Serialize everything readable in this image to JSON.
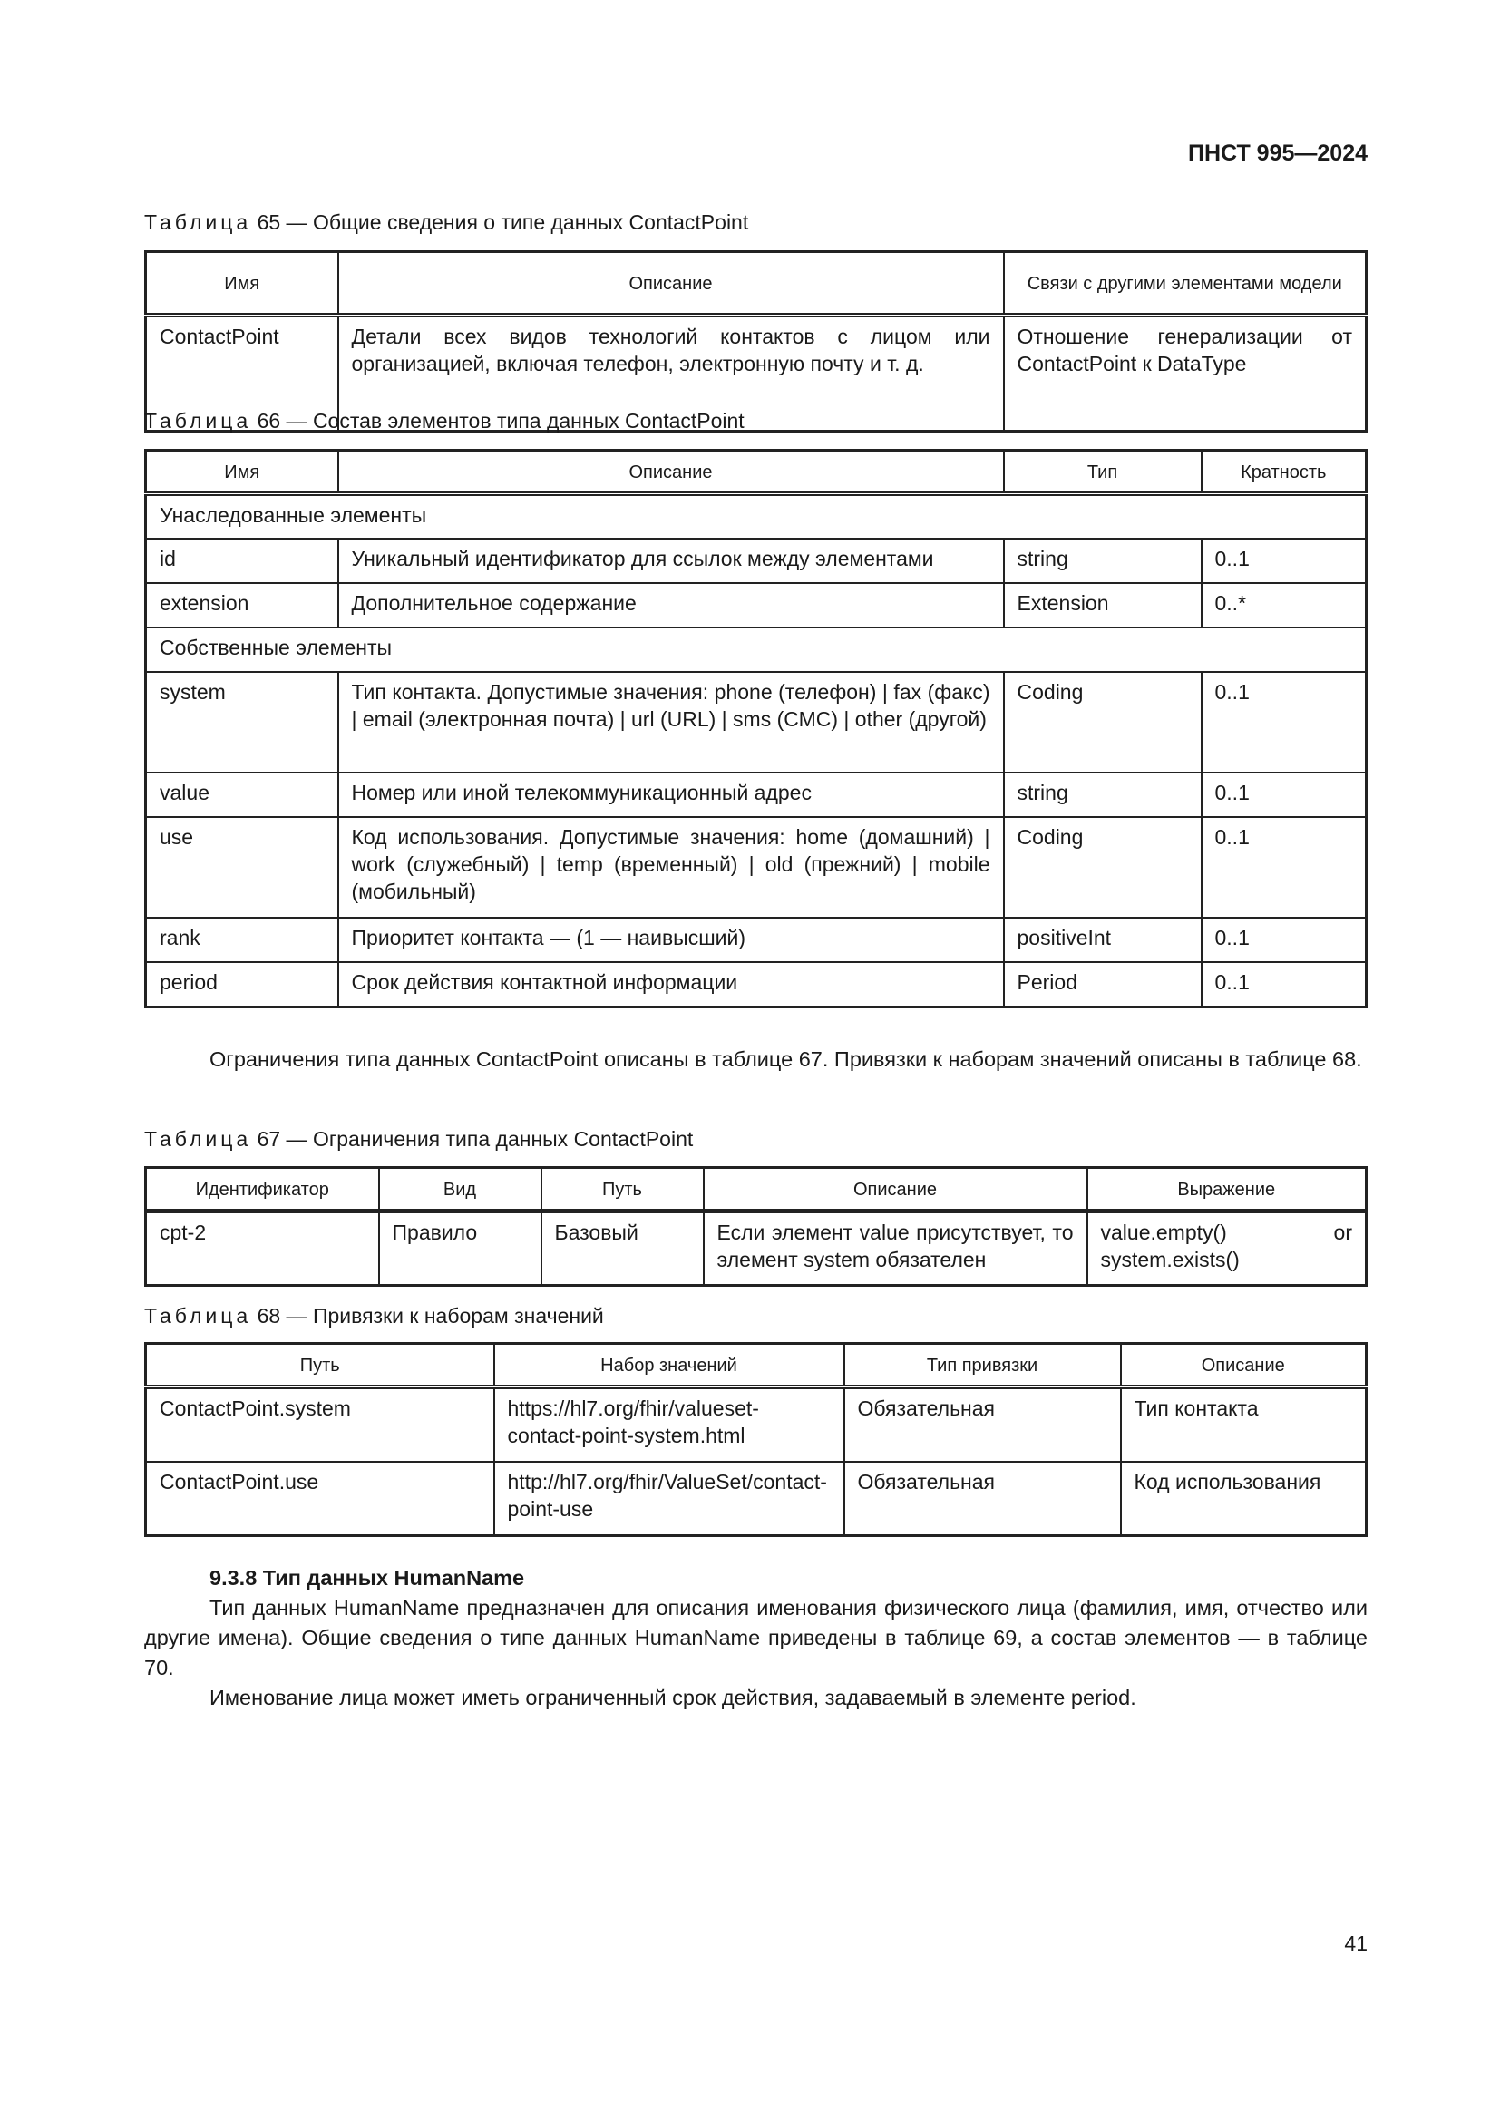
{
  "header": {
    "doc_number": "ПНСТ 995—2024"
  },
  "table65": {
    "caption_prefix": "Таблица",
    "caption_rest": " 65 — Общие сведения о типе данных ContactPoint",
    "headers": [
      "Имя",
      "Описание",
      "Связи с другими элементами модели"
    ],
    "rows": [
      [
        "ContactPoint",
        "Детали всех видов технологий контактов с лицом или организацией, включая телефон, электронную почту и т. д.",
        "Отношение генерализации от ContactPoint к DataType"
      ]
    ]
  },
  "table66": {
    "caption_prefix": "Таблица",
    "caption_rest": " 66 — Состав элементов типа данных ContactPoint",
    "headers": [
      "Имя",
      "Описание",
      "Тип",
      "Кратность"
    ],
    "rows": [
      [
        "Унаследованные элементы"
      ],
      [
        "id",
        "Уникальный идентификатор для ссылок между элементами",
        "string",
        "0..1"
      ],
      [
        "extension",
        "Дополнительное содержание",
        "Extension",
        "0..*"
      ],
      [
        "Собственные элементы"
      ],
      [
        "system",
        "Тип контакта. Допустимые значения: phone (телефон) | fax (факс) | email (электронная почта) | url (URL) | sms (СМС) | other (другой)",
        "Coding",
        "0..1"
      ],
      [
        "value",
        "Номер или иной телекоммуникационный адрес",
        "string",
        "0..1"
      ],
      [
        "use",
        "Код использования. Допустимые значения: home (домашний) | work (служебный) | temp (временный) | old (прежний) | mobile (мобильный)",
        "Coding",
        "0..1"
      ],
      [
        "rank",
        "Приоритет контакта — (1 — наивысший)",
        "positiveInt",
        "0..1"
      ],
      [
        "period",
        "Срок действия контактной информации",
        "Period",
        "0..1"
      ]
    ]
  },
  "paragraph1": "Ограничения типа данных ContactPoint описаны в таблице 67. Привязки к наборам значений описаны в таблице 68.",
  "table67": {
    "caption_prefix": "Таблица",
    "caption_rest": " 67 — Ограничения типа данных ContactPoint",
    "headers": [
      "Идентификатор",
      "Вид",
      "Путь",
      "Описание",
      "Выражение"
    ],
    "rows": [
      [
        "cpt-2",
        "Правило",
        "Базовый",
        "Если элемент value присутствует, то элемент system обязателен",
        "value.empty() or system.exists()"
      ]
    ]
  },
  "table68": {
    "caption_prefix": "Таблица",
    "caption_rest": " 68 — Привязки к наборам значений",
    "headers": [
      "Путь",
      "Набор значений",
      "Тип привязки",
      "Описание"
    ],
    "rows": [
      [
        "ContactPoint.system",
        "https://hl7.org/fhir/valueset-contact-point-system.html",
        "Обязательная",
        "Тип контакта"
      ],
      [
        "ContactPoint.use",
        "http://hl7.org/fhir/ValueSet/contact-point-use",
        "Обязательная",
        "Код использования"
      ]
    ]
  },
  "section": {
    "heading": "9.3.8 Тип данных HumanName",
    "paragraph1": "Тип данных HumanName предназначен для описания именования физического лица (фамилия, имя, отчество или другие имена). Общие сведения о типе данных HumanName приведены в таблице 69, а состав элементов — в таблице 70.",
    "paragraph2": "Именование лица может иметь ограниченный срок действия, задаваемый в элементе period."
  },
  "page_number": "41"
}
